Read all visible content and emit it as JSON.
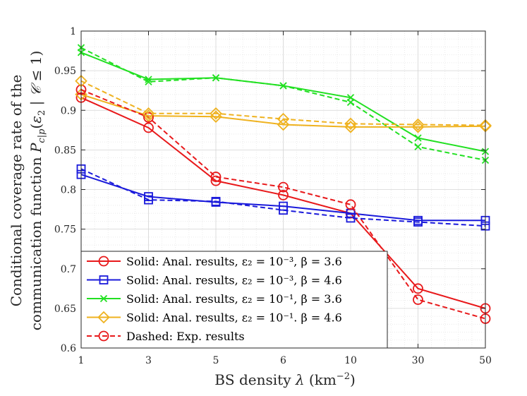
{
  "chart_data": {
    "type": "line",
    "xlabel": "BS density λ (km⁻²)",
    "ylabel_line1": "Conditional coverage rate of the",
    "ylabel_line2": "communication function P_{c|p}(ε₂ | C ≤ 1)",
    "x_ticks": [
      "1",
      "3",
      "5",
      "6",
      "10",
      "30",
      "50"
    ],
    "ylim": [
      0.6,
      1.0
    ],
    "y_ticks": [
      0.6,
      0.65,
      0.7,
      0.75,
      0.8,
      0.85,
      0.9,
      0.95,
      1.0
    ],
    "y_tick_labels": [
      "0.6",
      "0.65",
      "0.7",
      "0.75",
      "0.8",
      "0.85",
      "0.9",
      "0.95",
      "1"
    ],
    "grid": true,
    "minor_grid": true,
    "legend_position": "bottom-left",
    "series": [
      {
        "name": "Solid: Anal. results, ε₂ = 10⁻³, β = 3.6",
        "color": "#e8191b",
        "marker": "circle",
        "dash": false,
        "values": [
          0.916,
          0.878,
          0.811,
          0.793,
          0.77,
          0.675,
          0.65
        ]
      },
      {
        "name": "Solid: Anal. results, ε₂ = 10⁻³, β = 4.6",
        "color": "#1a1adb",
        "marker": "square",
        "dash": false,
        "values": [
          0.819,
          0.791,
          0.784,
          0.779,
          0.77,
          0.761,
          0.761
        ]
      },
      {
        "name": "Solid: Anal. results, ε₂ = 10⁻¹, β = 3.6",
        "color": "#22e022",
        "marker": "x",
        "dash": false,
        "values": [
          0.973,
          0.939,
          0.941,
          0.931,
          0.916,
          0.865,
          0.848
        ]
      },
      {
        "name": "Solid: Anal. results, ε₂ = 10⁻¹. β = 4.6",
        "color": "#efb21f",
        "marker": "diamond",
        "dash": false,
        "values": [
          0.92,
          0.893,
          0.892,
          0.882,
          0.879,
          0.879,
          0.88
        ]
      },
      {
        "name": "",
        "color": "#e8191b",
        "marker": "circle",
        "dash": true,
        "values": [
          0.926,
          0.891,
          0.816,
          0.803,
          0.781,
          0.661,
          0.637
        ]
      },
      {
        "name": "",
        "color": "#1a1adb",
        "marker": "square",
        "dash": true,
        "values": [
          0.826,
          0.787,
          0.785,
          0.774,
          0.764,
          0.759,
          0.754
        ]
      },
      {
        "name": "",
        "color": "#22e022",
        "marker": "x",
        "dash": true,
        "values": [
          0.979,
          0.936,
          0.941,
          0.931,
          0.91,
          0.854,
          0.837
        ]
      },
      {
        "name": "",
        "color": "#efb21f",
        "marker": "diamond",
        "dash": true,
        "values": [
          0.937,
          0.896,
          0.896,
          0.889,
          0.883,
          0.882,
          0.881
        ]
      }
    ],
    "legend": [
      {
        "label": "Solid: Anal. results, ε₂ = 10⁻³, β = 3.6",
        "color": "#e8191b",
        "marker": "circle",
        "dash": false
      },
      {
        "label": "Solid: Anal. results, ε₂ = 10⁻³, β = 4.6",
        "color": "#1a1adb",
        "marker": "square",
        "dash": false
      },
      {
        "label": "Solid: Anal. results, ε₂ = 10⁻¹, β = 3.6",
        "color": "#22e022",
        "marker": "x",
        "dash": false
      },
      {
        "label": "Solid: Anal. results, ε₂ = 10⁻¹. β = 4.6",
        "color": "#efb21f",
        "marker": "diamond",
        "dash": false
      },
      {
        "label": "Dashed: Exp. results",
        "color": "#e8191b",
        "marker": "circle",
        "dash": true
      }
    ]
  }
}
